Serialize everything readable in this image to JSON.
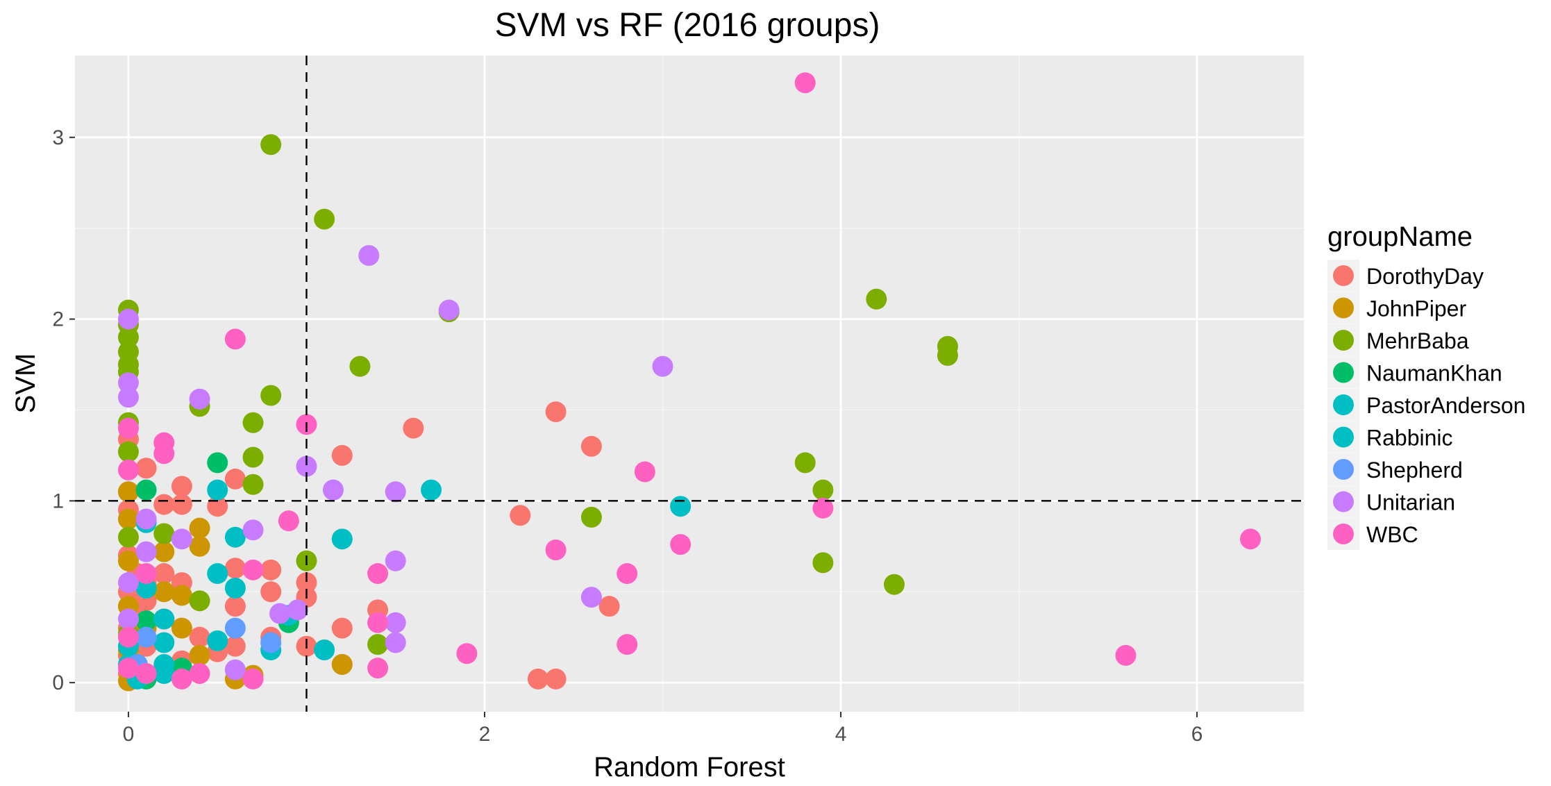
{
  "chart_data": {
    "type": "scatter",
    "title": "SVM vs RF (2016 groups)",
    "xlabel": "Random Forest",
    "ylabel": "SVM",
    "xlim": [
      -0.3,
      6.6
    ],
    "ylim": [
      -0.16,
      3.45
    ],
    "xticks": [
      0,
      2,
      4,
      6
    ],
    "yticks": [
      0,
      1,
      2,
      3
    ],
    "grid": true,
    "reference_lines": {
      "x": 1,
      "y": 1,
      "style": "dashed"
    },
    "legend": {
      "title": "groupName",
      "position": "right"
    },
    "series": [
      {
        "name": "DorothyDay",
        "color": "#F8766D",
        "points": [
          [
            0,
            0.05
          ],
          [
            0,
            0.15
          ],
          [
            0,
            0.3
          ],
          [
            0,
            0.5
          ],
          [
            0,
            0.7
          ],
          [
            0,
            0.95
          ],
          [
            0,
            1.05
          ],
          [
            0,
            1.34
          ],
          [
            0.05,
            0.4
          ],
          [
            0.05,
            0.6
          ],
          [
            0.1,
            0.2
          ],
          [
            0.1,
            0.45
          ],
          [
            0.1,
            0.55
          ],
          [
            0.1,
            1.18
          ],
          [
            0.2,
            0.35
          ],
          [
            0.2,
            0.6
          ],
          [
            0.2,
            0.98
          ],
          [
            0.3,
            0.55
          ],
          [
            0.3,
            0.98
          ],
          [
            0.3,
            1.08
          ],
          [
            0.3,
            0.12
          ],
          [
            0.4,
            0.25
          ],
          [
            0.5,
            0.17
          ],
          [
            0.5,
            0.97
          ],
          [
            0.6,
            0.42
          ],
          [
            0.6,
            0.63
          ],
          [
            0.6,
            1.12
          ],
          [
            0.6,
            0.2
          ],
          [
            0.8,
            0.5
          ],
          [
            0.8,
            0.62
          ],
          [
            0.8,
            0.25
          ],
          [
            1,
            0.2
          ],
          [
            1,
            0.47
          ],
          [
            1,
            0.55
          ],
          [
            1.2,
            0.1
          ],
          [
            1.2,
            0.3
          ],
          [
            1.2,
            1.25
          ],
          [
            1.4,
            0.4
          ],
          [
            1.6,
            1.4
          ],
          [
            2.2,
            0.92
          ],
          [
            2.3,
            0.02
          ],
          [
            2.4,
            0.02
          ],
          [
            2.4,
            1.49
          ],
          [
            2.6,
            1.3
          ],
          [
            2.7,
            0.42
          ]
        ]
      },
      {
        "name": "JohnPiper",
        "color": "#CD9600",
        "points": [
          [
            0,
            0.01
          ],
          [
            0,
            0.18
          ],
          [
            0,
            0.42
          ],
          [
            0,
            0.67
          ],
          [
            0,
            0.9
          ],
          [
            0,
            1.05
          ],
          [
            0.1,
            0.3
          ],
          [
            0.2,
            0.5
          ],
          [
            0.2,
            0.72
          ],
          [
            0.3,
            0.05
          ],
          [
            0.3,
            0.3
          ],
          [
            0.3,
            0.48
          ],
          [
            0.4,
            0.15
          ],
          [
            0.4,
            0.75
          ],
          [
            0.4,
            0.85
          ],
          [
            0.6,
            0.02
          ],
          [
            0.7,
            0.04
          ],
          [
            1.2,
            0.1
          ]
        ]
      },
      {
        "name": "MehrBaba",
        "color": "#7CAE00",
        "points": [
          [
            0,
            0.27
          ],
          [
            0,
            0.8
          ],
          [
            0,
            1.27
          ],
          [
            0,
            1.43
          ],
          [
            0,
            1.71
          ],
          [
            0,
            1.75
          ],
          [
            0,
            1.82
          ],
          [
            0,
            1.9
          ],
          [
            0,
            1.97
          ],
          [
            0,
            2.05
          ],
          [
            0.2,
            0.82
          ],
          [
            0.4,
            0.45
          ],
          [
            0.4,
            1.52
          ],
          [
            0.7,
            1.09
          ],
          [
            0.7,
            1.24
          ],
          [
            0.7,
            1.43
          ],
          [
            0.8,
            1.58
          ],
          [
            0.8,
            2.96
          ],
          [
            1,
            0.67
          ],
          [
            1.1,
            2.55
          ],
          [
            1.3,
            1.74
          ],
          [
            1.4,
            0.21
          ],
          [
            1.8,
            2.04
          ],
          [
            2.6,
            0.91
          ],
          [
            3.8,
            1.21
          ],
          [
            3.9,
            0.66
          ],
          [
            3.9,
            1.06
          ],
          [
            4.2,
            2.11
          ],
          [
            4.3,
            0.54
          ],
          [
            4.6,
            1.8
          ],
          [
            4.6,
            1.85
          ]
        ]
      },
      {
        "name": "NaumanKhan",
        "color": "#00BE67",
        "points": [
          [
            0.05,
            0.1
          ],
          [
            0.1,
            0.02
          ],
          [
            0.1,
            0.34
          ],
          [
            0.1,
            1.06
          ],
          [
            0.3,
            0.08
          ],
          [
            0.5,
            1.21
          ],
          [
            0.9,
            0.33
          ]
        ]
      },
      {
        "name": "PastorAnderson",
        "color": "#00BFC4",
        "points": [
          [
            0,
            0.1
          ],
          [
            0.1,
            0.88
          ],
          [
            0.2,
            0.1
          ],
          [
            0.2,
            0.35
          ],
          [
            0.5,
            0.23
          ],
          [
            0.5,
            0.6
          ],
          [
            0.5,
            1.06
          ],
          [
            0.9,
            0.37
          ],
          [
            1.7,
            1.06
          ],
          [
            3.1,
            0.97
          ]
        ]
      },
      {
        "name": "Rabbinic",
        "color": "#00BFC4",
        "points": [
          [
            0,
            0.2
          ],
          [
            0.05,
            0.02
          ],
          [
            0.1,
            0.52
          ],
          [
            0.2,
            0.05
          ],
          [
            0.2,
            0.22
          ],
          [
            0.6,
            0.52
          ],
          [
            0.6,
            0.8
          ],
          [
            0.8,
            0.18
          ],
          [
            1.1,
            0.18
          ],
          [
            1.2,
            0.79
          ]
        ]
      },
      {
        "name": "Shepherd",
        "color": "#619CFF",
        "points": [
          [
            0.05,
            0.1
          ],
          [
            0.1,
            0.25
          ],
          [
            0.6,
            0.3
          ],
          [
            0.8,
            0.22
          ]
        ]
      },
      {
        "name": "Unitarian",
        "color": "#C77CFF",
        "points": [
          [
            0,
            0.35
          ],
          [
            0,
            0.55
          ],
          [
            0,
            1.57
          ],
          [
            0,
            1.65
          ],
          [
            0,
            2.0
          ],
          [
            0.1,
            0.72
          ],
          [
            0.1,
            0.9
          ],
          [
            0.3,
            0.79
          ],
          [
            0.4,
            1.56
          ],
          [
            0.6,
            0.07
          ],
          [
            0.7,
            0.84
          ],
          [
            0.85,
            0.38
          ],
          [
            0.95,
            0.4
          ],
          [
            1,
            1.19
          ],
          [
            1.15,
            1.06
          ],
          [
            1.35,
            2.35
          ],
          [
            1.5,
            0.22
          ],
          [
            1.5,
            0.33
          ],
          [
            1.5,
            0.67
          ],
          [
            1.5,
            1.05
          ],
          [
            1.8,
            2.05
          ],
          [
            2.6,
            0.47
          ],
          [
            3,
            1.74
          ]
        ]
      },
      {
        "name": "WBC",
        "color": "#FF61C3",
        "points": [
          [
            0,
            0.08
          ],
          [
            0,
            0.25
          ],
          [
            0,
            1.17
          ],
          [
            0,
            1.4
          ],
          [
            0.1,
            0.05
          ],
          [
            0.1,
            0.6
          ],
          [
            0.2,
            1.26
          ],
          [
            0.2,
            1.32
          ],
          [
            0.3,
            0.02
          ],
          [
            0.4,
            0.05
          ],
          [
            0.6,
            1.89
          ],
          [
            0.7,
            0.02
          ],
          [
            0.7,
            0.62
          ],
          [
            0.9,
            0.89
          ],
          [
            1,
            1.42
          ],
          [
            1.4,
            0.08
          ],
          [
            1.4,
            0.33
          ],
          [
            1.4,
            0.6
          ],
          [
            1.9,
            0.16
          ],
          [
            2.4,
            0.73
          ],
          [
            2.8,
            0.21
          ],
          [
            2.8,
            0.6
          ],
          [
            2.9,
            1.16
          ],
          [
            3.1,
            0.76
          ],
          [
            3.8,
            3.3
          ],
          [
            3.9,
            0.96
          ],
          [
            5.6,
            0.15
          ],
          [
            6.3,
            0.79
          ]
        ]
      }
    ]
  }
}
